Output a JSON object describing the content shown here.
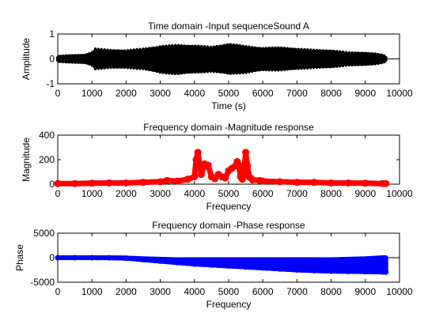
{
  "colors": {
    "background": "#ffffff",
    "axes": "#000000"
  },
  "chart_data": [
    {
      "type": "line",
      "title": "Time domain -Input sequenceSound A",
      "xlabel": "Time (s)",
      "ylabel": "Amplitude",
      "xlim": [
        0,
        10000
      ],
      "ylim": [
        -1,
        1
      ],
      "xticks": [
        "0",
        "1000",
        "2000",
        "3000",
        "4000",
        "5000",
        "6000",
        "7000",
        "8000",
        "9000",
        "10000"
      ],
      "yticks": [
        "-1",
        "0",
        "1"
      ],
      "grid": false,
      "series": [
        {
          "color": "#000000",
          "marker": "dot",
          "data_x_end": 9600,
          "envelope_x": [
            0,
            300,
            800,
            1000,
            1100,
            1500,
            2000,
            2500,
            3000,
            3500,
            4000,
            4500,
            5000,
            5500,
            6000,
            6500,
            7000,
            7500,
            8000,
            8500,
            9000,
            9300,
            9500,
            9600
          ],
          "envelope_upper": [
            0.05,
            0.08,
            0.1,
            0.2,
            0.35,
            0.3,
            0.28,
            0.35,
            0.45,
            0.5,
            0.48,
            0.42,
            0.55,
            0.45,
            0.38,
            0.4,
            0.35,
            0.3,
            0.28,
            0.2,
            0.18,
            0.15,
            0.1,
            0.05
          ],
          "envelope_lower": [
            -0.05,
            -0.08,
            -0.1,
            -0.2,
            -0.35,
            -0.3,
            -0.3,
            -0.35,
            -0.5,
            -0.55,
            -0.5,
            -0.45,
            -0.55,
            -0.5,
            -0.4,
            -0.4,
            -0.35,
            -0.3,
            -0.28,
            -0.2,
            -0.18,
            -0.15,
            -0.1,
            -0.05
          ]
        }
      ]
    },
    {
      "type": "line",
      "title": "Frequency domain -Magnitude response",
      "xlabel": "Frequency",
      "ylabel": "Magnitude",
      "xlim": [
        0,
        10000
      ],
      "ylim": [
        0,
        400
      ],
      "xticks": [
        "0",
        "1000",
        "2000",
        "3000",
        "4000",
        "5000",
        "6000",
        "7000",
        "8000",
        "9000",
        "10000"
      ],
      "yticks": [
        "0",
        "200",
        "400"
      ],
      "grid": false,
      "series": [
        {
          "color": "#ff0000",
          "marker": "o",
          "x": [
            0,
            500,
            1000,
            1500,
            2000,
            2500,
            3000,
            3200,
            3500,
            3800,
            4000,
            4050,
            4100,
            4150,
            4200,
            4300,
            4400,
            4500,
            4600,
            4700,
            4800,
            4900,
            5000,
            5100,
            5200,
            5250,
            5300,
            5350,
            5400,
            5450,
            5500,
            5550,
            5600,
            5650,
            5700,
            5900,
            6000,
            6500,
            7000,
            7500,
            8000,
            8500,
            9000,
            9500,
            9600
          ],
          "y": [
            5,
            5,
            8,
            10,
            10,
            15,
            20,
            30,
            25,
            40,
            60,
            200,
            260,
            160,
            80,
            165,
            155,
            60,
            45,
            80,
            60,
            50,
            110,
            130,
            150,
            185,
            155,
            60,
            40,
            110,
            260,
            150,
            60,
            50,
            35,
            30,
            25,
            20,
            15,
            15,
            10,
            10,
            8,
            5,
            5
          ]
        }
      ]
    },
    {
      "type": "line",
      "title": "Frequency domain -Phase response",
      "xlabel": "Frequency",
      "ylabel": "Phase",
      "xlim": [
        0,
        10000
      ],
      "ylim": [
        -5000,
        5000
      ],
      "xticks": [
        "0",
        "1000",
        "2000",
        "3000",
        "4000",
        "5000",
        "6000",
        "7000",
        "8000",
        "9000",
        "10000"
      ],
      "yticks": [
        "-5000",
        "0",
        "5000"
      ],
      "grid": false,
      "series": [
        {
          "color": "#0000ff",
          "marker": "o",
          "x": [
            0,
            500,
            1000,
            1500,
            2000,
            2500,
            3000,
            3500,
            4000,
            4500,
            5000,
            5500,
            6000,
            6500,
            7000,
            7500,
            8000,
            8500,
            9000,
            9500,
            9600
          ],
          "y": [
            0,
            0,
            0,
            -20,
            -100,
            -400,
            -700,
            -1000,
            -1300,
            -1500,
            -1700,
            -1900,
            -2100,
            -2300,
            -2500,
            -2650,
            -2750,
            -2800,
            -2850,
            -2900,
            -2950
          ],
          "band_upper": [
            0,
            0,
            0,
            0,
            -50,
            -200,
            -300,
            -400,
            -500,
            -500,
            -500,
            -500,
            -500,
            -500,
            -500,
            -500,
            -400,
            -300,
            -200,
            0,
            0
          ]
        }
      ]
    }
  ]
}
